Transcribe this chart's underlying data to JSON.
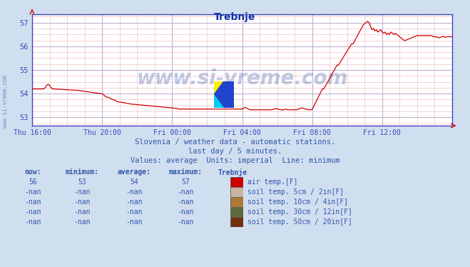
{
  "title": "Trebnje",
  "bg_color": "#d0dff0",
  "plot_bg_color": "#ffffff",
  "line_color": "#cc0000",
  "x_labels": [
    "Thu 16:00",
    "Thu 20:00",
    "Fri 00:00",
    "Fri 04:00",
    "Fri 08:00",
    "Fri 12:00"
  ],
  "x_ticks": [
    0,
    48,
    96,
    144,
    192,
    240
  ],
  "y_ticks": [
    53,
    54,
    55,
    56,
    57
  ],
  "ylim": [
    52.65,
    57.35
  ],
  "xlim": [
    0,
    288
  ],
  "subtitle1": "Slovenia / weather data - automatic stations.",
  "subtitle2": "last day / 5 minutes.",
  "subtitle3": "Values: average  Units: imperial  Line: minimum",
  "watermark": "www.si-vreme.com",
  "left_watermark": "www.si-vreme.com",
  "legend_items": [
    {
      "label": "air temp.[F]",
      "color": "#cc0000"
    },
    {
      "label": "soil temp. 5cm / 2in[F]",
      "color": "#c8b4a0"
    },
    {
      "label": "soil temp. 10cm / 4in[F]",
      "color": "#b07830"
    },
    {
      "label": "soil temp. 30cm / 12in[F]",
      "color": "#606840"
    },
    {
      "label": "soil temp. 50cm / 20in[F]",
      "color": "#703010"
    }
  ],
  "table_headers": [
    "now:",
    "minimum:",
    "average:",
    "maximum:",
    "Trebnje"
  ],
  "table_row0": [
    "56",
    "53",
    "54",
    "57"
  ],
  "table_rowN": [
    "-nan",
    "-nan",
    "-nan",
    "-nan"
  ],
  "text_color": "#3355aa",
  "axis_color": "#4444bb",
  "grid_major_color": "#c0b0d0",
  "grid_minor_color": "#f0c0c8"
}
